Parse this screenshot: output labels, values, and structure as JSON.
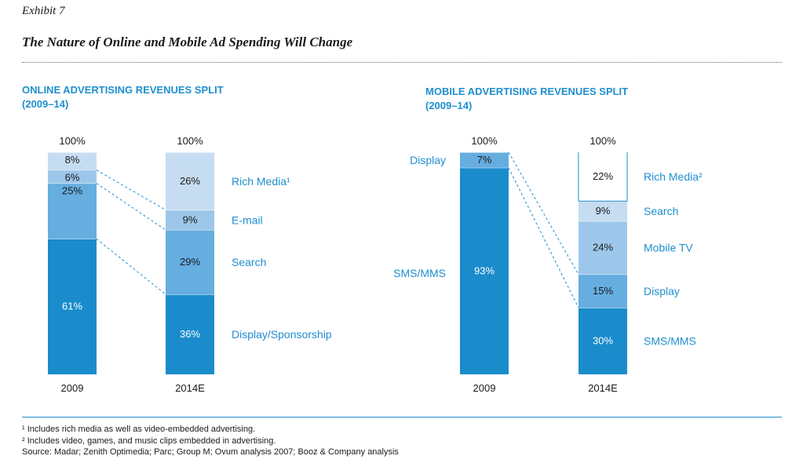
{
  "header": {
    "exhibit": "Exhibit 7",
    "title": "The Nature of Online and Mobile Ad Spending Will Change"
  },
  "colors": {
    "rich_media_online": "#c6dcf1",
    "email": "#9dc7ea",
    "search": "#66ade0",
    "display_dark": "#1a8ccc",
    "accent_text": "#1f8fcf",
    "mobile_rich_media": "#ffffff",
    "mobile_search": "#c6dcf1",
    "mobile_tv": "#9dc7ea",
    "mobile_display": "#66ade0"
  },
  "chart_data": [
    {
      "type": "bar",
      "stacked": true,
      "title": "ONLINE ADVERTISING REVENUES SPLIT",
      "subtitle": "(2009–14)",
      "categories": [
        "2009",
        "2014E"
      ],
      "totals": [
        "100%",
        "100%"
      ],
      "series": [
        {
          "name": "Display/Sponsorship",
          "values": [
            61,
            36
          ],
          "labels": [
            "61%",
            "36%"
          ]
        },
        {
          "name": "Search",
          "values": [
            25,
            29
          ],
          "labels": [
            "25%",
            "29%"
          ]
        },
        {
          "name": "E-mail",
          "values": [
            6,
            9
          ],
          "labels": [
            "6%",
            "9%"
          ]
        },
        {
          "name": "Rich Media¹",
          "values": [
            8,
            26
          ],
          "labels": [
            "8%",
            "26%"
          ]
        }
      ],
      "ylim": [
        0,
        100
      ]
    },
    {
      "type": "bar",
      "stacked": true,
      "title": "MOBILE ADVERTISING REVENUES SPLIT",
      "subtitle": "(2009–14)",
      "categories": [
        "2009",
        "2014E"
      ],
      "totals": [
        "100%",
        "100%"
      ],
      "series": [
        {
          "name": "SMS/MMS",
          "values": [
            93,
            30
          ],
          "labels": [
            "93%",
            "30%"
          ]
        },
        {
          "name": "Display",
          "values": [
            7,
            15
          ],
          "labels": [
            "7%",
            "15%"
          ]
        },
        {
          "name": "Mobile TV",
          "values": [
            0,
            24
          ],
          "labels": [
            "",
            "24%"
          ]
        },
        {
          "name": "Search",
          "values": [
            0,
            9
          ],
          "labels": [
            "",
            "9%"
          ]
        },
        {
          "name": "Rich Media²",
          "values": [
            0,
            22
          ],
          "labels": [
            "",
            "22%"
          ]
        }
      ],
      "left_labels": [
        "Display",
        "SMS/MMS"
      ],
      "ylim": [
        0,
        100
      ]
    }
  ],
  "footnotes": {
    "note1": "¹ Includes rich media as well as video-embedded advertising.",
    "note2": "² Includes video, games, and music clips embedded in advertising.",
    "source": "Source: Madar; Zenith Optimedia; Parc; Group M; Ovum analysis 2007; Booz & Company analysis"
  }
}
